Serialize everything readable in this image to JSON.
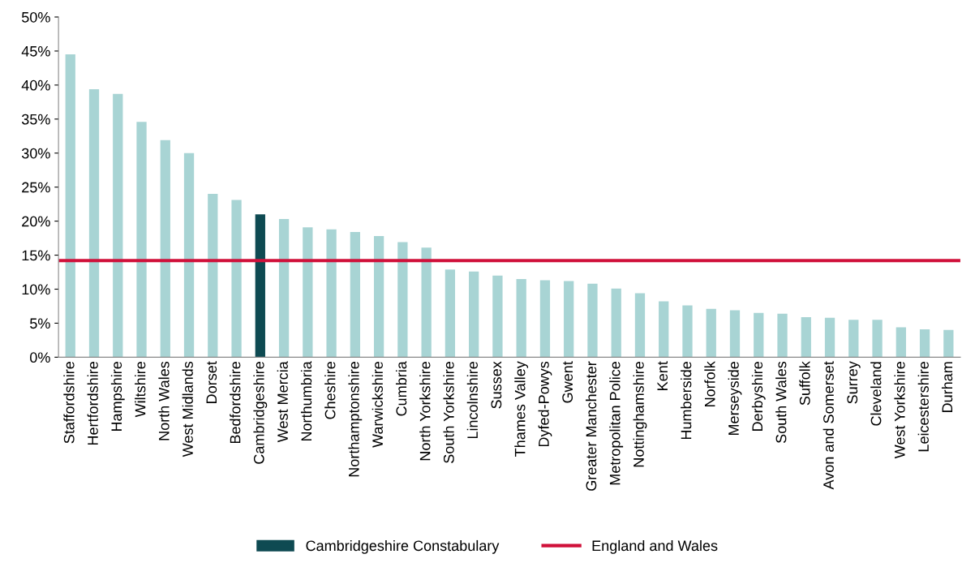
{
  "chart_data": {
    "type": "bar",
    "categories": [
      "Staffordshire",
      "Hertfordshire",
      "Hampshire",
      "Wiltshire",
      "North Wales",
      "West Midlands",
      "Dorset",
      "Bedfordshire",
      "Cambridgeshire",
      "West Mercia",
      "Northumbria",
      "Cheshire",
      "Northamptonshire",
      "Warwickshire",
      "Cumbria",
      "North Yorkshire",
      "South Yorkshire",
      "Lincolnshire",
      "Sussex",
      "Thames Valley",
      "Dyfed-Powys",
      "Gwent",
      "Greater Manchester",
      "Metropolitan Police",
      "Nottinghamshire",
      "Kent",
      "Humberside",
      "Norfolk",
      "Merseyside",
      "Derbyshire",
      "South Wales",
      "Suffolk",
      "Avon and Somerset",
      "Surrey",
      "Cleveland",
      "West Yorkshire",
      "Leicestershire",
      "Durham"
    ],
    "series": [
      {
        "color": "#a8d4d4",
        "values": [
          44.5,
          39.4,
          38.7,
          34.6,
          31.9,
          30.0,
          24.0,
          23.1,
          null,
          20.3,
          19.1,
          18.8,
          18.4,
          17.8,
          16.9,
          16.1,
          12.9,
          12.6,
          12.0,
          11.5,
          11.3,
          11.2,
          10.8,
          10.1,
          9.4,
          8.2,
          7.6,
          7.1,
          6.9,
          6.5,
          6.4,
          5.9,
          5.8,
          5.5,
          5.5,
          4.4,
          4.1,
          4.0
        ]
      },
      {
        "name": "Cambridgeshire Constabulary",
        "color": "#0e4a52",
        "values": [
          null,
          null,
          null,
          null,
          null,
          null,
          null,
          null,
          21.0,
          null,
          null,
          null,
          null,
          null,
          null,
          null,
          null,
          null,
          null,
          null,
          null,
          null,
          null,
          null,
          null,
          null,
          null,
          null,
          null,
          null,
          null,
          null,
          null,
          null,
          null,
          null,
          null,
          null
        ]
      }
    ],
    "ref_lines": [
      {
        "axis": "y",
        "value": 14.2,
        "label": "England and Wales",
        "color": "#d0103a"
      }
    ],
    "ylim": [
      0,
      50
    ],
    "yticks": [
      {
        "value": 0,
        "label": "0%"
      },
      {
        "value": 5,
        "label": "5%"
      },
      {
        "value": 10,
        "label": "10%"
      },
      {
        "value": 15,
        "label": "15%"
      },
      {
        "value": 20,
        "label": "20%"
      },
      {
        "value": 25,
        "label": "25%"
      },
      {
        "value": 30,
        "label": "30%"
      },
      {
        "value": 35,
        "label": "35%"
      },
      {
        "value": 40,
        "label": "40%"
      },
      {
        "value": 45,
        "label": "45%"
      },
      {
        "value": 50,
        "label": "50%"
      }
    ],
    "grid": false,
    "legend": "bottom"
  }
}
